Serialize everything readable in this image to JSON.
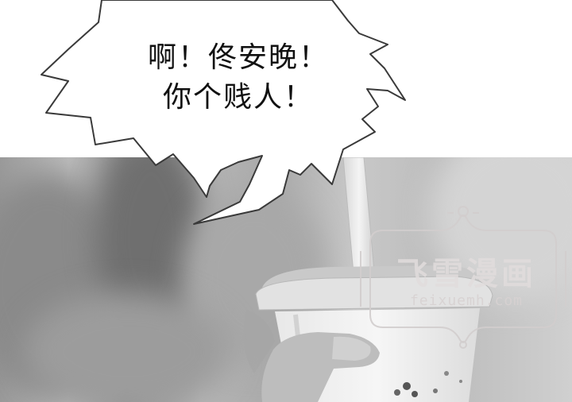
{
  "speech_bubble": {
    "line1": "啊！佟安晚！",
    "line2": "你个贱人！"
  },
  "watermark": {
    "title": "飞雪漫画",
    "url": "feixuemh.com"
  }
}
